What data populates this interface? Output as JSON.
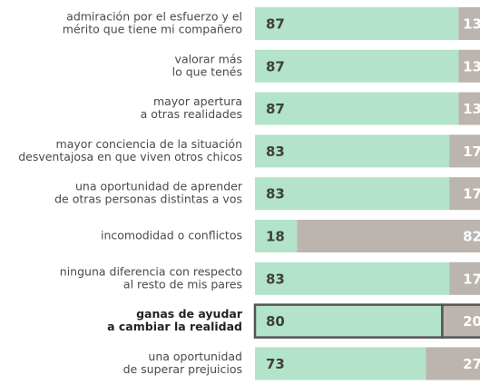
{
  "chart_data": {
    "type": "stacked-bar-horizontal",
    "categories": [
      [
        "admiración por el esfuerzo y el",
        "mérito que tiene mi compañero"
      ],
      [
        "valorar más",
        "lo que tenés"
      ],
      [
        "mayor apertura",
        "a otras realidades"
      ],
      [
        "mayor conciencia de la situación",
        "desventajosa en que viven otros chicos"
      ],
      [
        "una oportunidad de aprender",
        "de otras personas distintas a vos"
      ],
      [
        "incomodidad o conflictos"
      ],
      [
        "ninguna diferencia con respecto",
        "al resto de mis pares"
      ],
      [
        "ganas de ayudar",
        "a cambiar la realidad"
      ],
      [
        "una oportunidad",
        "de superar prejuicios"
      ]
    ],
    "series": [
      {
        "color": "#b3e3cb",
        "label_color": "#3f3f3f",
        "values": [
          87,
          87,
          87,
          83,
          83,
          18,
          83,
          80,
          73
        ]
      },
      {
        "color": "#bbb4af",
        "label_color": "#ffffff",
        "values": [
          13,
          13,
          13,
          17,
          17,
          82,
          17,
          20,
          27
        ]
      }
    ],
    "xlim": [
      0,
      100
    ],
    "highlight": 7
  }
}
